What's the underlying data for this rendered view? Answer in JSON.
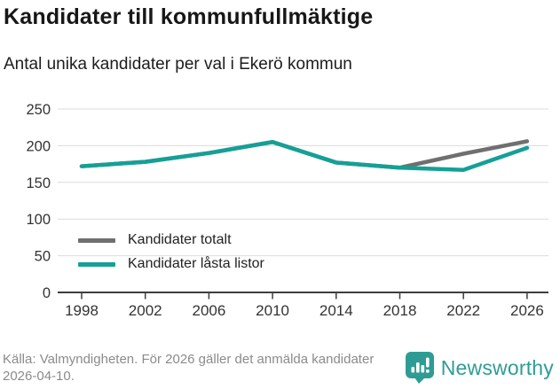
{
  "header": {
    "title": "Kandidater till kommunfullmäktige",
    "subtitle": "Antal unika kandidater per val i Ekerö kommun"
  },
  "chart_data": {
    "type": "line",
    "categories": [
      "1998",
      "2002",
      "2006",
      "2010",
      "2014",
      "2018",
      "2022",
      "2026"
    ],
    "series": [
      {
        "name": "Kandidater totalt",
        "color": "#6F6F6F",
        "values": [
          172,
          178,
          190,
          205,
          177,
          170,
          189,
          206
        ]
      },
      {
        "name": "Kandidater låsta listor",
        "color": "#14A096",
        "values": [
          172,
          178,
          190,
          205,
          177,
          170,
          167,
          197
        ]
      }
    ],
    "title": "Kandidater till kommunfullmäktige",
    "subtitle": "Antal unika kandidater per val i Ekerö kommun",
    "xlabel": "",
    "ylabel": "",
    "ylim": [
      0,
      250
    ],
    "yticks": [
      0,
      50,
      100,
      150,
      200,
      250
    ],
    "grid": "horizontal",
    "legend_position": "inside-bottom-left"
  },
  "footer": {
    "source": "Källa: Valmyndigheten. För 2026 gäller det anmälda kandidater 2026-04-10.",
    "brand": "Newsworthy"
  },
  "colors": {
    "series_total_gray": "#6F6F6F",
    "series_locked_teal": "#14A096",
    "grid_line": "#dcdcdc",
    "axis_line": "#3d3d3d",
    "tick_text": "#333333",
    "brand_teal": "#2e9c95"
  }
}
